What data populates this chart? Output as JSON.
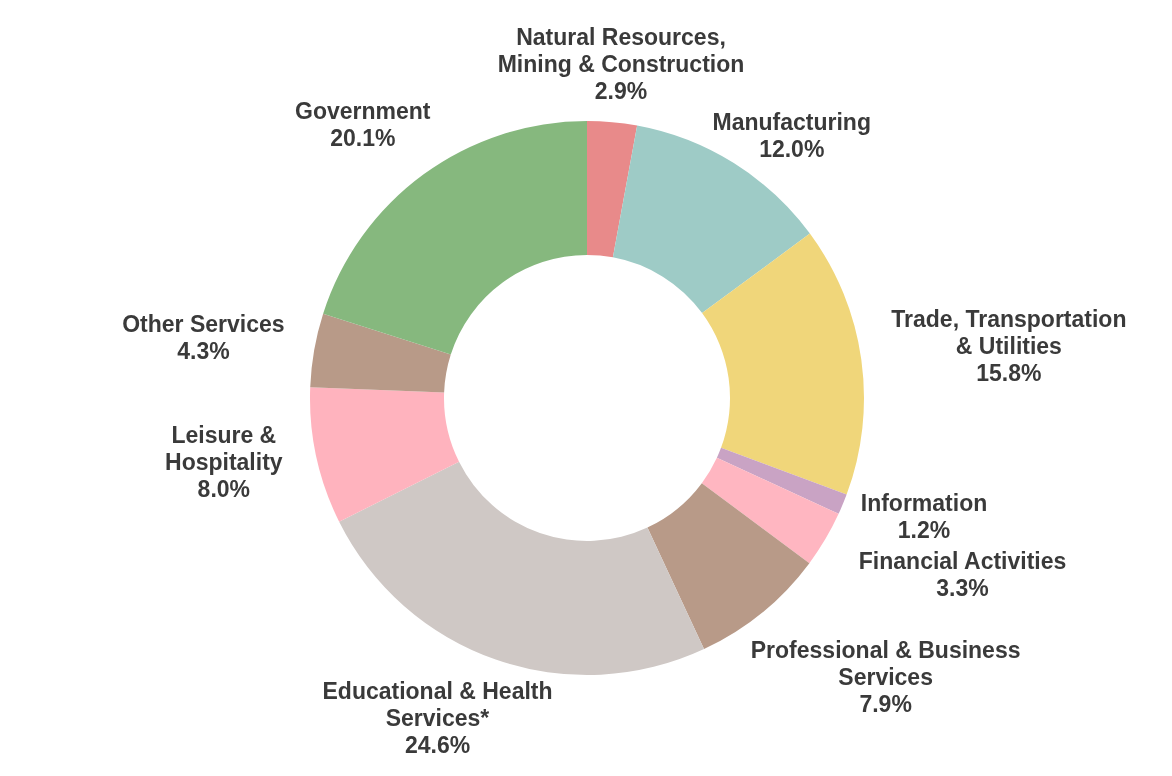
{
  "chart_data": {
    "type": "donut",
    "categories": [
      "Natural Resources,\nMining & Construction",
      "Manufacturing",
      "Trade, Transportation\n& Utilities",
      "Information",
      "Financial Activities",
      "Professional & Business\nServices",
      "Educational & Health\nServices*",
      "Leisure &\nHospitality",
      "Other Services",
      "Government"
    ],
    "values": [
      2.9,
      12.0,
      15.8,
      1.2,
      3.3,
      7.9,
      24.6,
      8.0,
      4.3,
      20.1
    ],
    "value_labels": [
      "2.9%",
      "12.0%",
      "15.8%",
      "1.2%",
      "3.3%",
      "7.9%",
      "24.6%",
      "8.0%",
      "4.3%",
      "20.1%"
    ],
    "colors": [
      "#e88a8a",
      "#9ecbc6",
      "#f0d67a",
      "#c9a3c4",
      "#ffb6c1",
      "#b89a88",
      "#cfc8c5",
      "#ffb3be",
      "#b89a88",
      "#86b87e"
    ]
  }
}
